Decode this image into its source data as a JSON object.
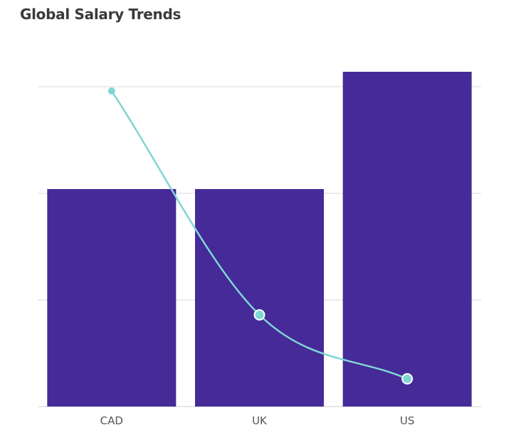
{
  "chart_data": {
    "type": "bar",
    "title": "Global Salary Trends",
    "categories": [
      "CAD",
      "UK",
      "US"
    ],
    "series": [
      {
        "type": "bar",
        "values": [
          102,
          102,
          157
        ]
      },
      {
        "type": "line",
        "values": [
          148,
          43,
          13
        ]
      }
    ],
    "ylim": [
      0,
      150
    ],
    "grid": true,
    "colors": {
      "bar": "#452a98",
      "line": "#7fd6d4",
      "grid": "#d9d9d9",
      "text": "#555555"
    }
  }
}
